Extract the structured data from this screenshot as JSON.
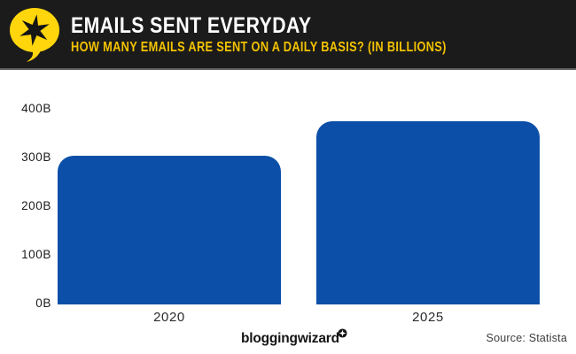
{
  "header": {
    "title": "EMAILS SENT EVERYDAY",
    "subtitle": "HOW MANY EMAILS ARE SENT ON A DAILY BASIS? (IN BILLIONS)",
    "logo_icon": "speech-bubble-star-icon"
  },
  "chart_data": {
    "type": "bar",
    "title": "Emails sent everyday",
    "subtitle": "How many emails are sent on a daily basis? (in billions)",
    "categories": [
      "2020",
      "2025"
    ],
    "values": [
      306,
      376
    ],
    "unit": "billions per day",
    "xlabel": "",
    "ylabel": "",
    "ylim": [
      0,
      400
    ],
    "yticks": [
      0,
      100,
      200,
      300,
      400
    ],
    "ytick_labels": [
      "0B",
      "100B",
      "200B",
      "300B",
      "400B"
    ],
    "grid": false,
    "legend": false,
    "bar_color": "#0b4fa8"
  },
  "footer": {
    "brand": "bloggingwizard",
    "brand_icon": "sparkle-badge-icon",
    "source": "Source: Statista"
  },
  "colors": {
    "header_background": "#1b1b1b",
    "title": "#ffffff",
    "subtitle": "#f2c200",
    "logo_yellow": "#ffd60b",
    "bar": "#0b4fa8"
  }
}
